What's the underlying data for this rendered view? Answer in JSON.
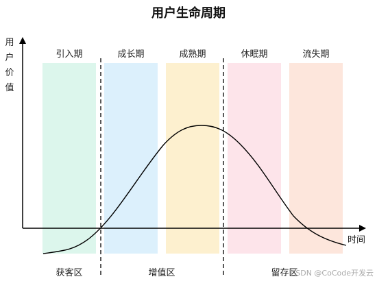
{
  "title": "用户生命周期",
  "y_axis_label": [
    "用",
    "户",
    "价",
    "值"
  ],
  "x_axis_label": "时间",
  "stages": [
    {
      "label": "引入期",
      "color": "#dcf6ec"
    },
    {
      "label": "成长期",
      "color": "#dcf0fc"
    },
    {
      "label": "成熟期",
      "color": "#fdf0cf"
    },
    {
      "label": "休眠期",
      "color": "#fde4ea"
    },
    {
      "label": "流失期",
      "color": "#fde6dc"
    }
  ],
  "zones": [
    {
      "label": "获客区"
    },
    {
      "label": "增值区"
    },
    {
      "label": "留存区"
    }
  ],
  "watermark": "CSDN @CoCode开发云"
}
